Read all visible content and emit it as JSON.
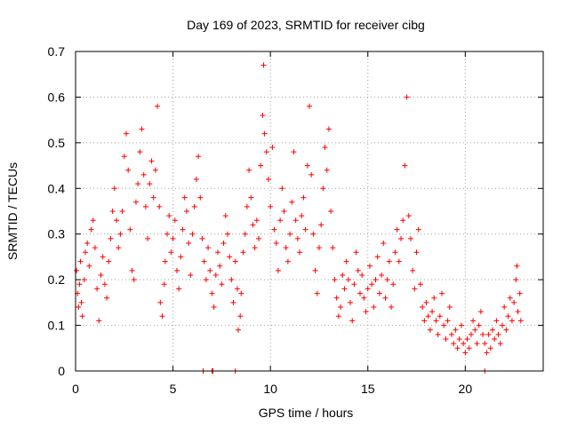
{
  "chart_data": {
    "type": "scatter",
    "title": "Day 169 of 2023, SRMTID for receiver cibg",
    "xlabel": "GPS time / hours",
    "ylabel": "SRMTID / TECUs",
    "xlim": [
      0,
      24
    ],
    "ylim": [
      0,
      0.7
    ],
    "xticks": [
      0,
      5,
      10,
      15,
      20
    ],
    "xtick_labels": [
      "0",
      "5",
      "10",
      "15",
      "20"
    ],
    "yticks": [
      0,
      0.1,
      0.2,
      0.3,
      0.4,
      0.5,
      0.6,
      0.7
    ],
    "ytick_labels": [
      "0",
      "0.1",
      "0.2",
      "0.3",
      "0.4",
      "0.5",
      "0.6",
      "0.7"
    ],
    "grid": true,
    "marker": "plus",
    "color": "#ff0000",
    "series": [
      {
        "name": "SRMTID",
        "points": [
          [
            0.05,
            0.22
          ],
          [
            0.1,
            0.17
          ],
          [
            0.15,
            0.14
          ],
          [
            0.2,
            0.19
          ],
          [
            0.25,
            0.24
          ],
          [
            0.3,
            0.15
          ],
          [
            0.35,
            0.12
          ],
          [
            0.45,
            0.2
          ],
          [
            0.5,
            0.26
          ],
          [
            0.6,
            0.28
          ],
          [
            0.7,
            0.23
          ],
          [
            0.8,
            0.31
          ],
          [
            0.9,
            0.33
          ],
          [
            1.0,
            0.27
          ],
          [
            1.1,
            0.18
          ],
          [
            1.2,
            0.11
          ],
          [
            1.3,
            0.21
          ],
          [
            1.4,
            0.25
          ],
          [
            1.5,
            0.19
          ],
          [
            1.6,
            0.16
          ],
          [
            1.7,
            0.24
          ],
          [
            1.8,
            0.29
          ],
          [
            1.9,
            0.35
          ],
          [
            2.0,
            0.4
          ],
          [
            2.1,
            0.33
          ],
          [
            2.2,
            0.27
          ],
          [
            2.3,
            0.3
          ],
          [
            2.4,
            0.35
          ],
          [
            2.5,
            0.47
          ],
          [
            2.6,
            0.52
          ],
          [
            2.7,
            0.44
          ],
          [
            2.8,
            0.31
          ],
          [
            2.9,
            0.22
          ],
          [
            3.0,
            0.2
          ],
          [
            3.1,
            0.37
          ],
          [
            3.2,
            0.41
          ],
          [
            3.3,
            0.48
          ],
          [
            3.4,
            0.53
          ],
          [
            3.5,
            0.43
          ],
          [
            3.6,
            0.36
          ],
          [
            3.7,
            0.29
          ],
          [
            3.8,
            0.41
          ],
          [
            3.9,
            0.46
          ],
          [
            4.0,
            0.38
          ],
          [
            4.1,
            0.44
          ],
          [
            4.2,
            0.58
          ],
          [
            4.3,
            0.36
          ],
          [
            4.35,
            0.15
          ],
          [
            4.45,
            0.12
          ],
          [
            4.55,
            0.19
          ],
          [
            4.6,
            0.24
          ],
          [
            4.7,
            0.3
          ],
          [
            4.8,
            0.34
          ],
          [
            4.9,
            0.26
          ],
          [
            5.0,
            0.29
          ],
          [
            5.1,
            0.33
          ],
          [
            5.2,
            0.22
          ],
          [
            5.3,
            0.18
          ],
          [
            5.4,
            0.25
          ],
          [
            5.5,
            0.31
          ],
          [
            5.6,
            0.38
          ],
          [
            5.7,
            0.35
          ],
          [
            5.8,
            0.28
          ],
          [
            5.9,
            0.21
          ],
          [
            6.0,
            0.3
          ],
          [
            6.1,
            0.36
          ],
          [
            6.2,
            0.42
          ],
          [
            6.3,
            0.47
          ],
          [
            6.4,
            0.38
          ],
          [
            6.5,
            0.29
          ],
          [
            6.6,
            0.24
          ],
          [
            6.7,
            0.2
          ],
          [
            6.8,
            0.27
          ],
          [
            6.9,
            0.22
          ],
          [
            7.0,
            0.17
          ],
          [
            7.1,
            0.14
          ],
          [
            7.2,
            0.21
          ],
          [
            7.3,
            0.26
          ],
          [
            7.4,
            0.23
          ],
          [
            7.5,
            0.19
          ],
          [
            7.6,
            0.28
          ],
          [
            7.7,
            0.34
          ],
          [
            7.8,
            0.3
          ],
          [
            7.9,
            0.25
          ],
          [
            8.0,
            0.2
          ],
          [
            8.1,
            0.15
          ],
          [
            8.2,
            0.24
          ],
          [
            8.3,
            0.18
          ],
          [
            8.35,
            0.09
          ],
          [
            8.45,
            0.12
          ],
          [
            8.5,
            0.17
          ],
          [
            8.6,
            0.26
          ],
          [
            8.7,
            0.3
          ],
          [
            8.8,
            0.36
          ],
          [
            8.9,
            0.44
          ],
          [
            9.0,
            0.38
          ],
          [
            9.1,
            0.32
          ],
          [
            9.2,
            0.27
          ],
          [
            9.3,
            0.33
          ],
          [
            9.4,
            0.29
          ],
          [
            9.5,
            0.45
          ],
          [
            9.6,
            0.56
          ],
          [
            9.65,
            0.67
          ],
          [
            9.7,
            0.52
          ],
          [
            9.8,
            0.48
          ],
          [
            9.9,
            0.42
          ],
          [
            10.0,
            0.36
          ],
          [
            10.1,
            0.49
          ],
          [
            10.2,
            0.31
          ],
          [
            10.3,
            0.28
          ],
          [
            10.4,
            0.22
          ],
          [
            10.5,
            0.33
          ],
          [
            10.6,
            0.4
          ],
          [
            10.7,
            0.35
          ],
          [
            10.8,
            0.27
          ],
          [
            10.9,
            0.24
          ],
          [
            11.0,
            0.3
          ],
          [
            11.1,
            0.37
          ],
          [
            11.2,
            0.48
          ],
          [
            11.3,
            0.33
          ],
          [
            11.4,
            0.29
          ],
          [
            11.5,
            0.26
          ],
          [
            11.6,
            0.34
          ],
          [
            11.7,
            0.38
          ],
          [
            11.8,
            0.31
          ],
          [
            11.9,
            0.45
          ],
          [
            12.0,
            0.58
          ],
          [
            12.1,
            0.43
          ],
          [
            12.2,
            0.3
          ],
          [
            12.3,
            0.22
          ],
          [
            12.4,
            0.17
          ],
          [
            12.5,
            0.27
          ],
          [
            12.6,
            0.32
          ],
          [
            12.7,
            0.4
          ],
          [
            12.8,
            0.49
          ],
          [
            12.9,
            0.44
          ],
          [
            13.0,
            0.53
          ],
          [
            13.1,
            0.35
          ],
          [
            13.2,
            0.27
          ],
          [
            13.3,
            0.2
          ],
          [
            13.4,
            0.16
          ],
          [
            13.5,
            0.12
          ],
          [
            13.6,
            0.14
          ],
          [
            13.7,
            0.21
          ],
          [
            13.8,
            0.18
          ],
          [
            13.9,
            0.24
          ],
          [
            14.0,
            0.2
          ],
          [
            14.1,
            0.15
          ],
          [
            14.2,
            0.11
          ],
          [
            14.3,
            0.19
          ],
          [
            14.4,
            0.26
          ],
          [
            14.5,
            0.22
          ],
          [
            14.6,
            0.17
          ],
          [
            14.7,
            0.21
          ],
          [
            14.8,
            0.16
          ],
          [
            14.9,
            0.13
          ],
          [
            15.0,
            0.18
          ],
          [
            15.1,
            0.23
          ],
          [
            15.2,
            0.19
          ],
          [
            15.3,
            0.14
          ],
          [
            15.4,
            0.2
          ],
          [
            15.5,
            0.25
          ],
          [
            15.6,
            0.17
          ],
          [
            15.7,
            0.21
          ],
          [
            15.8,
            0.28
          ],
          [
            15.9,
            0.16
          ],
          [
            16.0,
            0.2
          ],
          [
            16.1,
            0.24
          ],
          [
            16.2,
            0.14
          ],
          [
            16.3,
            0.19
          ],
          [
            16.4,
            0.26
          ],
          [
            16.5,
            0.31
          ],
          [
            16.6,
            0.24
          ],
          [
            16.7,
            0.29
          ],
          [
            16.8,
            0.33
          ],
          [
            16.9,
            0.45
          ],
          [
            17.0,
            0.6
          ],
          [
            17.1,
            0.34
          ],
          [
            17.2,
            0.29
          ],
          [
            17.3,
            0.22
          ],
          [
            17.4,
            0.18
          ],
          [
            17.5,
            0.26
          ],
          [
            17.6,
            0.31
          ],
          [
            17.7,
            0.19
          ],
          [
            17.8,
            0.14
          ],
          [
            17.9,
            0.11
          ],
          [
            18.0,
            0.15
          ],
          [
            18.1,
            0.12
          ],
          [
            18.2,
            0.09
          ],
          [
            18.3,
            0.13
          ],
          [
            18.4,
            0.16
          ],
          [
            18.5,
            0.11
          ],
          [
            18.6,
            0.08
          ],
          [
            18.7,
            0.12
          ],
          [
            18.8,
            0.17
          ],
          [
            18.9,
            0.1
          ],
          [
            19.0,
            0.07
          ],
          [
            19.1,
            0.11
          ],
          [
            19.2,
            0.14
          ],
          [
            19.3,
            0.08
          ],
          [
            19.4,
            0.06
          ],
          [
            19.5,
            0.09
          ],
          [
            19.6,
            0.05
          ],
          [
            19.7,
            0.07
          ],
          [
            19.8,
            0.1
          ],
          [
            19.9,
            0.06
          ],
          [
            20.0,
            0.04
          ],
          [
            20.1,
            0.07
          ],
          [
            20.2,
            0.05
          ],
          [
            20.3,
            0.08
          ],
          [
            20.4,
            0.11
          ],
          [
            20.5,
            0.09
          ],
          [
            20.6,
            0.06
          ],
          [
            20.7,
            0.1
          ],
          [
            20.8,
            0.13
          ],
          [
            20.9,
            0.08
          ],
          [
            21.0,
            0.06
          ],
          [
            21.1,
            0.04
          ],
          [
            21.2,
            0.08
          ],
          [
            21.3,
            0.05
          ],
          [
            21.4,
            0.09
          ],
          [
            21.5,
            0.07
          ],
          [
            21.6,
            0.11
          ],
          [
            21.7,
            0.08
          ],
          [
            21.8,
            0.06
          ],
          [
            21.9,
            0.1
          ],
          [
            22.0,
            0.14
          ],
          [
            22.1,
            0.09
          ],
          [
            22.2,
            0.12
          ],
          [
            22.3,
            0.16
          ],
          [
            22.4,
            0.11
          ],
          [
            22.5,
            0.15
          ],
          [
            22.6,
            0.2
          ],
          [
            22.65,
            0.23
          ],
          [
            22.7,
            0.13
          ],
          [
            22.8,
            0.17
          ],
          [
            22.85,
            0.11
          ],
          [
            6.55,
            0.0
          ],
          [
            7.0,
            0.0
          ],
          [
            7.05,
            0.0
          ],
          [
            8.2,
            0.0
          ],
          [
            21.0,
            0.0
          ]
        ]
      }
    ]
  }
}
